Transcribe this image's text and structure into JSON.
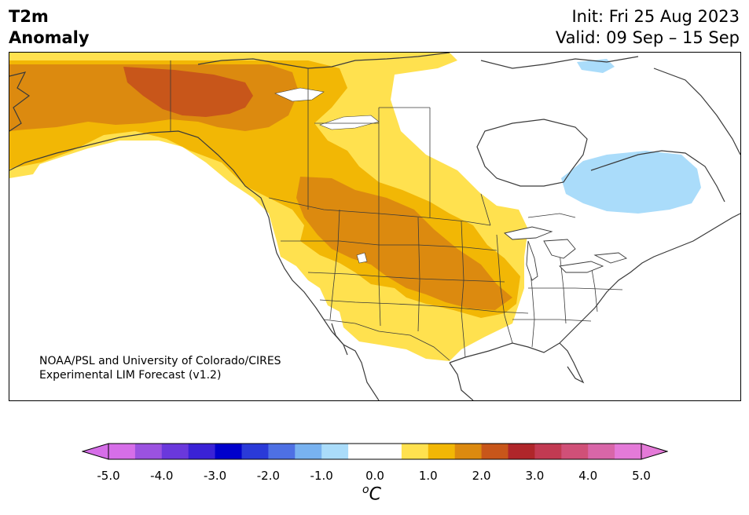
{
  "header": {
    "title_line1": "T2m",
    "title_line2": "Anomaly",
    "init": "Init: Fri 25 Aug 2023",
    "valid": "Valid: 09 Sep – 15 Sep"
  },
  "credit": {
    "line1": "NOAA/PSL and University of Colorado/CIRES",
    "line2": "Experimental LIM Forecast (v1.2)"
  },
  "colorbar": {
    "labels": [
      "-5.0",
      "-4.0",
      "-3.0",
      "-2.0",
      "-1.0",
      "0.0",
      "1.0",
      "2.0",
      "3.0",
      "4.0",
      "5.0"
    ],
    "colors": [
      "#d66ee8",
      "#9b52e0",
      "#6a38dc",
      "#3a22d6",
      "#0000cc",
      "#2a3ad8",
      "#4e70e4",
      "#78b2f0",
      "#aadcfa",
      "#ffffff",
      "#ffffff",
      "#ffe14f",
      "#f2b705",
      "#dc8a0f",
      "#c8561a",
      "#b0262a",
      "#c23a52",
      "#d05078",
      "#d866a8",
      "#e47ad8"
    ],
    "low_extend_color": "#d66ee8",
    "high_extend_color": "#e47ad8",
    "units_base": "C",
    "units_sup": "o"
  },
  "map": {
    "anomaly_colors": {
      "light_yellow": "#ffe14f",
      "yellow_orange": "#f2b705",
      "orange": "#dc8a0f",
      "dark_orange": "#c8561a",
      "light_blue": "#aadcfa"
    }
  }
}
